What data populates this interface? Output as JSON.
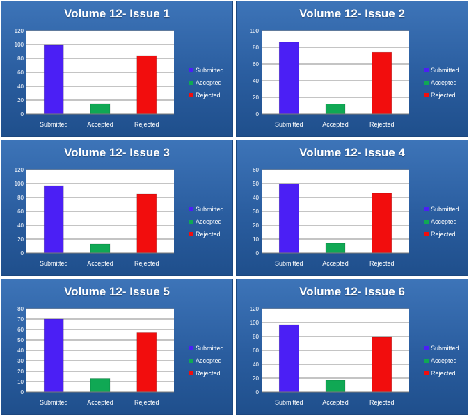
{
  "chart_data": [
    {
      "type": "bar",
      "title": "Volume 12- Issue 1",
      "categories": [
        "Submitted",
        "Accepted",
        "Rejected"
      ],
      "values": [
        99,
        15,
        84
      ],
      "ylim": [
        0,
        120
      ],
      "yticks": [
        0,
        20,
        40,
        60,
        80,
        100,
        120
      ],
      "colors": [
        "#4b1ff5",
        "#10a854",
        "#f20d0d"
      ],
      "legend": [
        "Submitted",
        "Accepted",
        "Rejected"
      ],
      "legend_position": "right",
      "grid": true
    },
    {
      "type": "bar",
      "title": "Volume 12- Issue 2",
      "categories": [
        "Submitted",
        "Accepted",
        "Rejected"
      ],
      "values": [
        86,
        12,
        74
      ],
      "ylim": [
        0,
        100
      ],
      "yticks": [
        0,
        20,
        40,
        60,
        80,
        100
      ],
      "colors": [
        "#4b1ff5",
        "#10a854",
        "#f20d0d"
      ],
      "legend": [
        "Submitted",
        "Accepted",
        "Rejected"
      ],
      "legend_position": "right",
      "grid": true
    },
    {
      "type": "bar",
      "title": "Volume 12- Issue 3",
      "categories": [
        "Submitted",
        "Accepted",
        "Rejected"
      ],
      "values": [
        97,
        13,
        85
      ],
      "ylim": [
        0,
        120
      ],
      "yticks": [
        0,
        20,
        40,
        60,
        80,
        100,
        120
      ],
      "colors": [
        "#4b1ff5",
        "#10a854",
        "#f20d0d"
      ],
      "legend": [
        "Submitted",
        "Accepted",
        "Rejected"
      ],
      "legend_position": "right",
      "grid": true
    },
    {
      "type": "bar",
      "title": "Volume 12- Issue 4",
      "categories": [
        "Submitted",
        "Accepted",
        "Rejected"
      ],
      "values": [
        50,
        7,
        43
      ],
      "ylim": [
        0,
        60
      ],
      "yticks": [
        0,
        10,
        20,
        30,
        40,
        50,
        60
      ],
      "colors": [
        "#4b1ff5",
        "#10a854",
        "#f20d0d"
      ],
      "legend": [
        "Submitted",
        "Accepted",
        "Rejected"
      ],
      "legend_position": "right",
      "grid": true
    },
    {
      "type": "bar",
      "title": "Volume 12- Issue 5",
      "categories": [
        "Submitted",
        "Accepted",
        "Rejected"
      ],
      "values": [
        70,
        13,
        57
      ],
      "ylim": [
        0,
        80
      ],
      "yticks": [
        0,
        10,
        20,
        30,
        40,
        50,
        60,
        70,
        80
      ],
      "colors": [
        "#4b1ff5",
        "#10a854",
        "#f20d0d"
      ],
      "legend": [
        "Submitted",
        "Accepted",
        "Rejected"
      ],
      "legend_position": "right",
      "grid": true
    },
    {
      "type": "bar",
      "title": "Volume 12- Issue 6",
      "categories": [
        "Submitted",
        "Accepted",
        "Rejected"
      ],
      "values": [
        97,
        17,
        79
      ],
      "ylim": [
        0,
        120
      ],
      "yticks": [
        0,
        20,
        40,
        60,
        80,
        100,
        120
      ],
      "colors": [
        "#4b1ff5",
        "#10a854",
        "#f20d0d"
      ],
      "legend": [
        "Submitted",
        "Accepted",
        "Rejected"
      ],
      "legend_position": "right",
      "grid": true
    }
  ]
}
